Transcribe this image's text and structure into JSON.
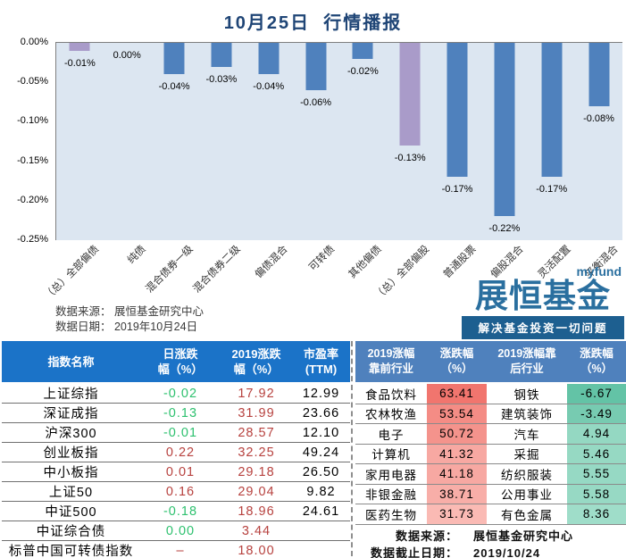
{
  "title": "10月25日  行情播报",
  "chart_data": {
    "type": "bar",
    "title": "10月25日 行情播报",
    "categories": [
      "（总）全部偏债",
      "纯债",
      "混合债券一级",
      "混合债券二级",
      "偏债混合",
      "可转债",
      "其他偏债",
      "（总）全部偏股",
      "普通股票",
      "偏股混合",
      "灵活配置",
      "平衡混合"
    ],
    "values": [
      -0.01,
      0.0,
      -0.04,
      -0.03,
      -0.04,
      -0.06,
      -0.02,
      -0.13,
      -0.17,
      -0.22,
      -0.17,
      -0.08
    ],
    "labels": [
      "-0.01%",
      "0.00%",
      "-0.04%",
      "-0.03%",
      "-0.04%",
      "-0.06%",
      "-0.02%",
      "-0.13%",
      "-0.17%",
      "-0.22%",
      "-0.17%",
      "-0.08%"
    ],
    "bar_colors": [
      "#A99BC9",
      "#4F81BD",
      "#4F81BD",
      "#4F81BD",
      "#4F81BD",
      "#4F81BD",
      "#4F81BD",
      "#A99BC9",
      "#4F81BD",
      "#4F81BD",
      "#4F81BD",
      "#4F81BD"
    ],
    "xlabel": "",
    "ylabel": "",
    "ylim": [
      -0.25,
      0
    ],
    "yticks": [
      "0.00%",
      "-0.05%",
      "-0.10%",
      "-0.15%",
      "-0.20%",
      "-0.25%"
    ],
    "grid": false,
    "legend": false,
    "plot_bg": "#DCE6F1",
    "source_line1": "数据来源： 展恒基金研究中心",
    "source_line2": "数据日期： 2019年10月24日"
  },
  "logo": {
    "myfund": "myfund",
    "brand": "展恒基金",
    "tagline": "解决基金投资一切问题",
    "color": "#2A6F9F",
    "tagline_bg": "#1D5F90"
  },
  "index_table": {
    "header_bg": "#1B73C8",
    "headers": [
      [
        "指数名称"
      ],
      [
        "日涨跌",
        "幅（%）"
      ],
      [
        "2019涨跌",
        "幅（%）"
      ],
      [
        "市盈率",
        "(TTM)"
      ]
    ],
    "rows": [
      {
        "name": "上证综指",
        "daily": "-0.02",
        "daily_color": "green",
        "ytd": "17.92",
        "pe": "12.99"
      },
      {
        "name": "深证成指",
        "daily": "-0.13",
        "daily_color": "green",
        "ytd": "31.99",
        "pe": "23.66"
      },
      {
        "name": "沪深300",
        "daily": "-0.01",
        "daily_color": "green",
        "ytd": "28.57",
        "pe": "12.10"
      },
      {
        "name": "创业板指",
        "daily": "0.22",
        "daily_color": "red",
        "ytd": "32.25",
        "pe": "49.24"
      },
      {
        "name": "中小板指",
        "daily": "0.01",
        "daily_color": "red",
        "ytd": "29.18",
        "pe": "26.50"
      },
      {
        "name": "上证50",
        "daily": "0.16",
        "daily_color": "red",
        "ytd": "29.04",
        "pe": "9.82"
      },
      {
        "name": "中证500",
        "daily": "-0.18",
        "daily_color": "green",
        "ytd": "18.96",
        "pe": "24.61"
      },
      {
        "name": "中证综合债",
        "daily": "0.00",
        "daily_color": "green",
        "ytd": "3.44",
        "pe": ""
      },
      {
        "name": "标普中国可转债指数",
        "daily": "–",
        "daily_color": "red",
        "ytd": "18.00",
        "pe": ""
      }
    ]
  },
  "industry_table": {
    "header_bg": "#4F81BD",
    "headers": [
      [
        "2019涨幅",
        "靠前行业"
      ],
      [
        "涨跌幅",
        "（%）"
      ],
      [
        "2019涨幅靠",
        "后行业"
      ],
      [
        "涨跌幅",
        "（%）"
      ]
    ],
    "rows": [
      {
        "top": "食品饮料",
        "top_chg": "63.41",
        "top_bg": "#F1756E",
        "bottom": "钢铁",
        "bottom_chg": "-6.67",
        "bottom_bg": "#63C3A6"
      },
      {
        "top": "农林牧渔",
        "top_chg": "53.54",
        "top_bg": "#F48C85",
        "bottom": "建筑装饰",
        "bottom_chg": "-3.49",
        "bottom_bg": "#77CBB1"
      },
      {
        "top": "电子",
        "top_chg": "50.72",
        "top_bg": "#F4938C",
        "bottom": "汽车",
        "bottom_chg": "4.94",
        "bottom_bg": "#94D8C2"
      },
      {
        "top": "计算机",
        "top_chg": "41.32",
        "top_bg": "#F7A8A2",
        "bottom": "采掘",
        "bottom_chg": "5.46",
        "bottom_bg": "#96D9C3"
      },
      {
        "top": "家用电器",
        "top_chg": "41.18",
        "top_bg": "#F7A8A2",
        "bottom": "纺织服装",
        "bottom_chg": "5.55",
        "bottom_bg": "#96D9C4"
      },
      {
        "top": "非银金融",
        "top_chg": "38.71",
        "top_bg": "#F8AEA8",
        "bottom": "公用事业",
        "bottom_chg": "5.58",
        "bottom_bg": "#97D9C4"
      },
      {
        "top": "医药生物",
        "top_chg": "31.73",
        "top_bg": "#FABAB4",
        "bottom": "有色金属",
        "bottom_chg": "8.36",
        "bottom_bg": "#9FDDC9"
      }
    ],
    "source_label": "数据来源：",
    "source_value": "展恒基金研究中心",
    "date_label": "数据截止日期：",
    "date_value": "2019/10/24"
  }
}
